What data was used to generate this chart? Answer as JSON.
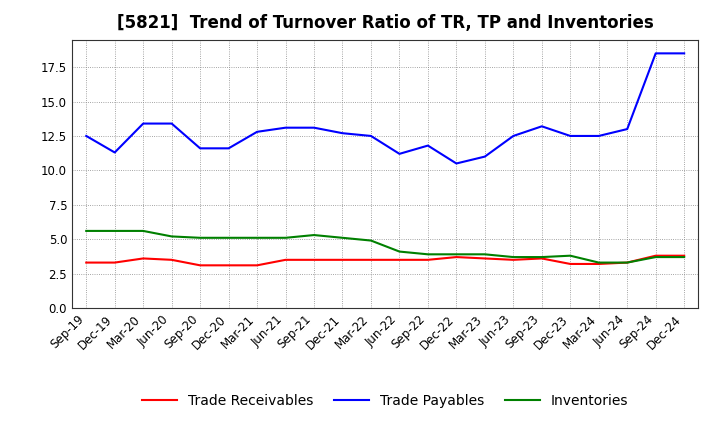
{
  "title": "[5821]  Trend of Turnover Ratio of TR, TP and Inventories",
  "x_labels": [
    "Sep-19",
    "Dec-19",
    "Mar-20",
    "Jun-20",
    "Sep-20",
    "Dec-20",
    "Mar-21",
    "Jun-21",
    "Sep-21",
    "Dec-21",
    "Mar-22",
    "Jun-22",
    "Sep-22",
    "Dec-22",
    "Mar-23",
    "Jun-23",
    "Sep-23",
    "Dec-23",
    "Mar-24",
    "Jun-24",
    "Sep-24",
    "Dec-24"
  ],
  "trade_receivables": [
    3.3,
    3.3,
    3.6,
    3.5,
    3.1,
    3.1,
    3.1,
    3.5,
    3.5,
    3.5,
    3.5,
    3.5,
    3.5,
    3.7,
    3.6,
    3.5,
    3.6,
    3.2,
    3.2,
    3.3,
    3.8,
    3.8
  ],
  "trade_payables": [
    12.5,
    11.3,
    13.4,
    13.4,
    11.6,
    11.6,
    12.8,
    13.1,
    13.1,
    12.7,
    12.5,
    11.2,
    11.8,
    10.5,
    11.0,
    12.5,
    13.2,
    12.5,
    12.5,
    13.0,
    18.5,
    18.5
  ],
  "inventories": [
    5.6,
    5.6,
    5.6,
    5.2,
    5.1,
    5.1,
    5.1,
    5.1,
    5.3,
    5.1,
    4.9,
    4.1,
    3.9,
    3.9,
    3.9,
    3.7,
    3.7,
    3.8,
    3.3,
    3.3,
    3.7,
    3.7
  ],
  "tr_color": "#ff0000",
  "tp_color": "#0000ff",
  "inv_color": "#008000",
  "tr_label": "Trade Receivables",
  "tp_label": "Trade Payables",
  "inv_label": "Inventories",
  "ylim": [
    0.0,
    19.5
  ],
  "yticks": [
    0.0,
    2.5,
    5.0,
    7.5,
    10.0,
    12.5,
    15.0,
    17.5
  ],
  "background_color": "#ffffff",
  "plot_bg_color": "#ffffff",
  "grid_color": "#888888",
  "title_fontsize": 12,
  "legend_fontsize": 10,
  "tick_fontsize": 8.5
}
